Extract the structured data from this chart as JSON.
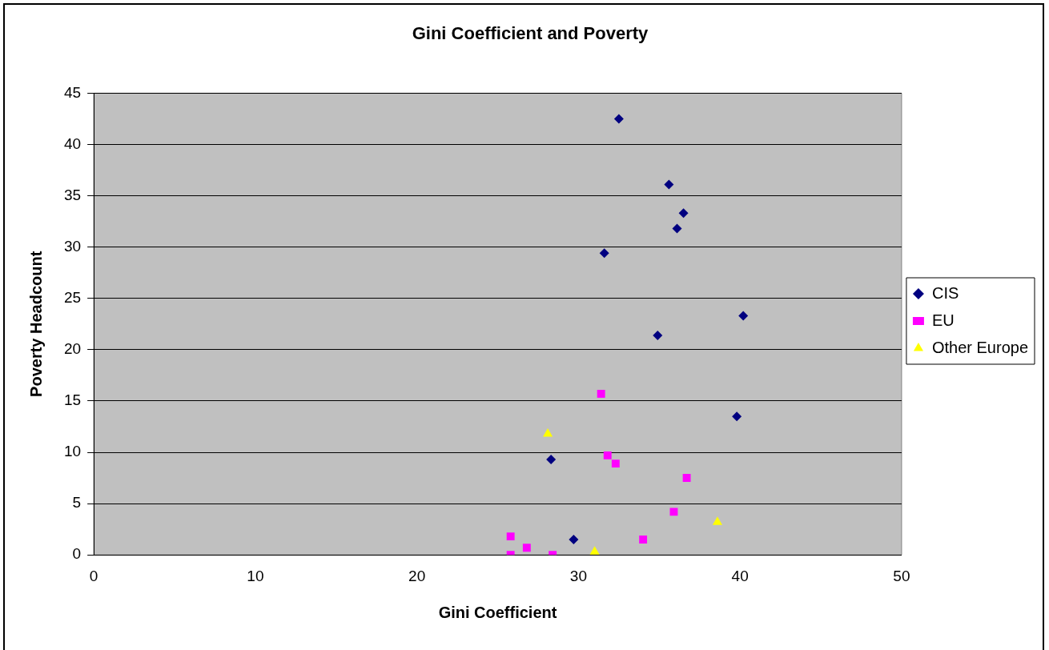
{
  "chart_data": {
    "type": "scatter",
    "title": "Gini Coefficient and Poverty",
    "xlabel": "Gini Coefficient",
    "ylabel": "Poverty Headcount",
    "xlim": [
      0,
      50
    ],
    "xticks": [
      0,
      10,
      20,
      30,
      40,
      50
    ],
    "ylim": [
      0,
      45
    ],
    "yticks": [
      0,
      5,
      10,
      15,
      20,
      25,
      30,
      35,
      40,
      45
    ],
    "grid": "y",
    "legend": "right",
    "series": [
      {
        "name": "CIS",
        "color": "#000080",
        "marker": "diamond",
        "x": [
          32.5,
          35.6,
          36.5,
          36.1,
          31.6,
          40.2,
          34.9,
          39.8,
          28.3,
          29.7
        ],
        "values": [
          42.5,
          36.1,
          33.3,
          31.8,
          29.4,
          23.3,
          21.4,
          13.5,
          9.3,
          1.5
        ]
      },
      {
        "name": "EU",
        "color": "#ff00ff",
        "marker": "square",
        "x": [
          25.8,
          25.8,
          26.8,
          28.4,
          31.4,
          31.8,
          32.3,
          36.7,
          35.9,
          34.0
        ],
        "values": [
          1.8,
          0,
          0.7,
          0,
          15.7,
          9.7,
          8.9,
          7.5,
          4.2,
          1.5
        ]
      },
      {
        "name": "Other Europe",
        "color": "#ffff00",
        "marker": "triangle",
        "x": [
          28.1,
          31.0,
          38.6
        ],
        "values": [
          11.8,
          0.3,
          3.2
        ]
      }
    ]
  }
}
